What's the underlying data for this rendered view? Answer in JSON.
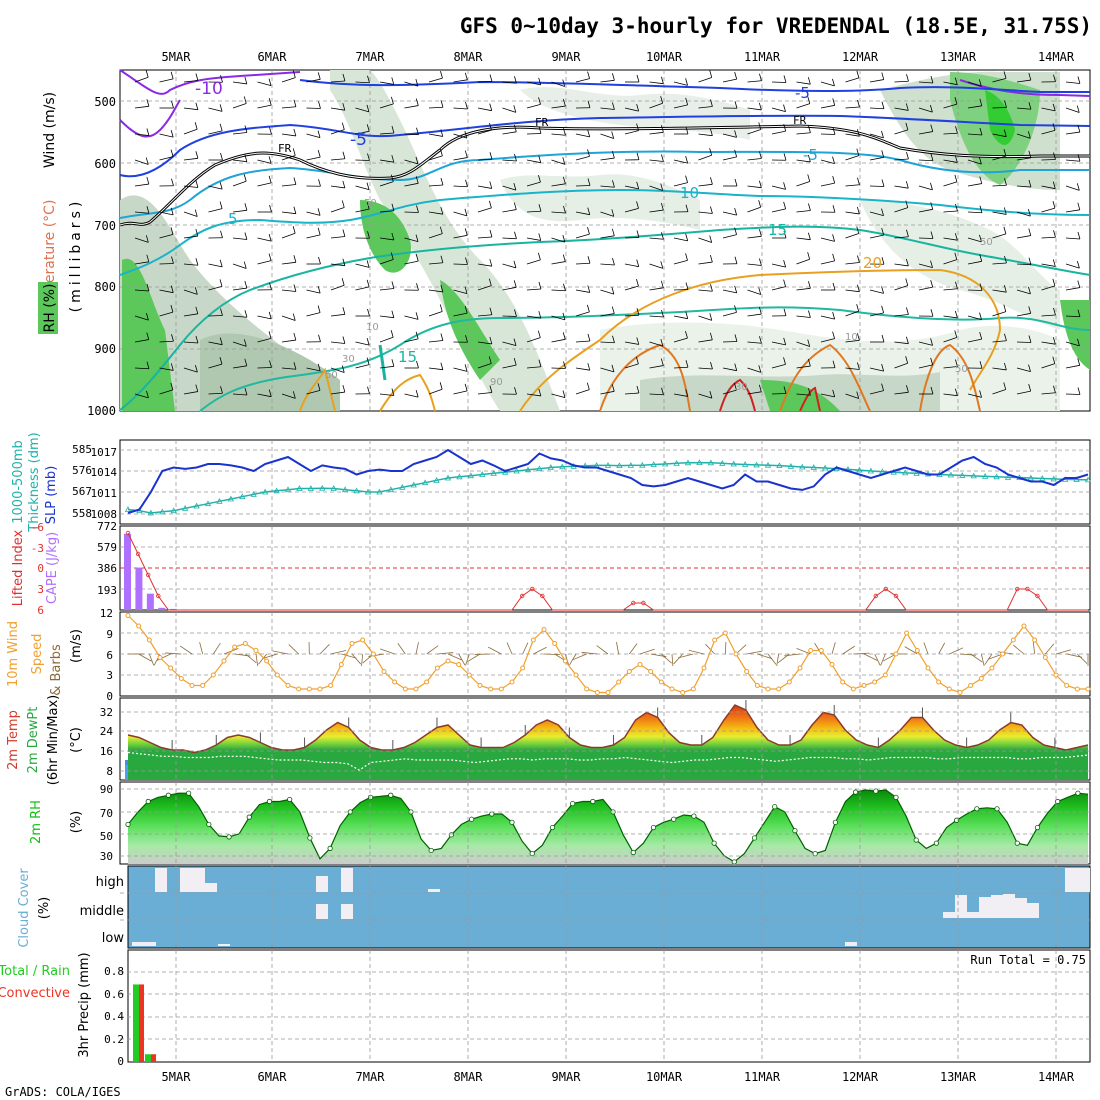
{
  "title": "GFS 0~10day 3-hourly for VREDENDAL (18.5E, 31.75S)",
  "footer": "GrADS: COLA/IGES",
  "dates": [
    "5MAR",
    "6MAR",
    "7MAR",
    "8MAR",
    "9MAR",
    "10MAR",
    "11MAR",
    "12MAR",
    "13MAR",
    "14MAR"
  ],
  "colors": {
    "slp": "#1a33cc",
    "thickness": "#20b2aa",
    "lifted": "#e03030",
    "cape": "#b070ff",
    "wind10": "#f0a030",
    "temp": "#d23c2d",
    "rh": "#10c010",
    "cloud": "#6aaed6",
    "precip_total": "#22cc22",
    "precip_conv": "#ee3322"
  },
  "panels": {
    "upper": {
      "ylabel_wind": "Wind (m/s)",
      "ylabel_temp": "Temperature (°C)",
      "ylabel_rh": "RH (%)",
      "ylabel_units": "(millibars)",
      "yticks": [
        "500",
        "600",
        "700",
        "800",
        "900",
        "1000"
      ],
      "contour_labels": [
        "-10",
        "-5",
        "-5",
        "-5",
        "FR",
        "FR",
        "FR",
        "5",
        "10",
        "15",
        "15",
        "20",
        "5",
        "50",
        "50",
        "10",
        "10",
        "30",
        "30",
        "50",
        "50",
        "90"
      ]
    },
    "slp": {
      "ylabel_a": "1000-500mb",
      "ylabel_b": "Thickness (dm)",
      "ylabel_c": "SLP (mb)",
      "left_ticks": [
        "585",
        "576",
        "567",
        "558"
      ],
      "right_ticks": [
        "1017",
        "1014",
        "1011",
        "1008"
      ]
    },
    "cape": {
      "ylabel_a": "Lifted Index",
      "ylabel_b": "CAPE (J/kg)",
      "left_ticks": [
        "-6",
        "-3",
        "0",
        "3",
        "6"
      ],
      "right_ticks": [
        "772",
        "579",
        "386",
        "193"
      ]
    },
    "wind": {
      "ylabel_a": "10m Wind",
      "ylabel_b": "Speed",
      "ylabel_c": "(m/s)",
      "ylabel_d": "& Barbs",
      "ticks": [
        "12",
        "9",
        "6",
        "3",
        "0"
      ]
    },
    "temp": {
      "ylabel_a": "2m Temp",
      "ylabel_b": "2m DewPt",
      "ylabel_c": "(6hr Min/Max)",
      "ylabel_d": "(°C)",
      "ticks": [
        "32",
        "24",
        "16",
        "8"
      ]
    },
    "rh": {
      "ylabel_a": "2m RH",
      "ylabel_b": "(%)",
      "ticks": [
        "90",
        "70",
        "50",
        "30"
      ]
    },
    "cloud": {
      "ylabel_a": "Cloud Cover",
      "ylabel_b": "(%)",
      "ticks": [
        "high",
        "middle",
        "low"
      ]
    },
    "precip": {
      "ylabel_a": "Total / Rain",
      "ylabel_b": "Convective",
      "ylabel_c": "3hr Precip (mm)",
      "ticks": [
        "0.8",
        "0.6",
        "0.4",
        "0.2",
        "0"
      ],
      "run_total": "Run Total = 0.75"
    }
  },
  "chart_data": [
    {
      "type": "line",
      "name": "SLP / Thickness",
      "x_unit": "3-hourly steps from 4 MAR 12Z",
      "series": [
        {
          "name": "SLP (mb)",
          "values": [
            1008,
            1008.5,
            1011,
            1014,
            1014.5,
            1014.3,
            1014.5,
            1015,
            1015,
            1014.8,
            1014.5,
            1014,
            1015,
            1015.5,
            1016,
            1015,
            1014,
            1014.8,
            1014.5,
            1014.3,
            1013.5,
            1014,
            1014.2,
            1014,
            1014,
            1015,
            1015.5,
            1016,
            1017,
            1016,
            1015,
            1015.5,
            1014.8,
            1014,
            1014.5,
            1015,
            1016.5,
            1015.8,
            1015.5,
            1014.8,
            1014.5,
            1014.5,
            1014,
            1013.5,
            1013,
            1012,
            1011.8,
            1012,
            1012.5,
            1013,
            1012.5,
            1012,
            1011.5,
            1012,
            1013.5,
            1012.5,
            1012.5,
            1012,
            1011.5,
            1011.3,
            1011.8,
            1013.5,
            1014.5,
            1014,
            1013.5,
            1013,
            1013.5,
            1014,
            1014.5,
            1014,
            1013.5,
            1013.5,
            1014.5,
            1015.5,
            1016,
            1015,
            1014.5,
            1013.5,
            1013,
            1012.5,
            1012.5,
            1012,
            1013,
            1013,
            1013.5
          ]
        },
        {
          "name": "1000-500mb Thickness (dm)",
          "values": [
            559.5,
            559,
            558,
            558.5,
            559,
            560,
            561,
            562,
            563,
            564,
            565,
            566,
            567,
            567.5,
            568,
            568.5,
            568.5,
            568.6,
            568.5,
            568,
            567.5,
            567,
            567,
            568,
            569,
            570,
            571,
            572,
            573,
            573.5,
            574,
            574.5,
            575,
            575.5,
            576,
            576.5,
            577,
            577.5,
            577.8,
            578,
            578.2,
            578.4,
            578.4,
            578.3,
            578.4,
            578.5,
            578.8,
            579,
            579.3,
            579.5,
            579.6,
            579.5,
            579.3,
            579,
            578.8,
            578.6,
            578.5,
            578.3,
            578,
            577.7,
            577.5,
            577.3,
            577,
            576.7,
            576.4,
            576,
            575.7,
            575.5,
            575.2,
            575,
            574.7,
            574.5,
            574.3,
            574.1,
            573.9,
            573.7,
            573.5,
            573.3,
            573.2,
            573,
            572.8,
            572.6,
            572.4,
            572.3,
            572.2
          ]
        }
      ]
    },
    {
      "type": "line",
      "name": "Lifted Index / CAPE",
      "series": [
        {
          "name": "Lifted Index",
          "values": [
            -5,
            -2,
            1,
            4,
            6,
            6,
            6,
            6,
            6,
            6,
            6,
            6,
            6,
            6,
            6,
            6,
            6,
            6,
            6,
            6,
            6,
            6,
            6,
            6,
            6,
            6,
            6,
            6,
            6,
            6,
            6,
            6,
            6,
            6,
            6,
            6,
            6,
            6,
            6,
            4,
            3,
            4,
            6,
            6,
            6,
            6,
            6,
            6,
            6,
            6,
            5,
            5,
            6,
            6,
            6,
            6,
            6,
            6,
            6,
            6,
            6,
            6,
            6,
            6,
            6,
            6,
            6,
            6,
            6,
            6,
            6,
            6,
            6,
            6,
            4,
            3,
            4,
            6,
            6,
            6,
            6,
            6,
            6,
            6,
            6,
            6,
            6,
            6,
            3,
            3,
            4,
            6,
            6,
            6,
            6,
            6
          ]
        },
        {
          "name": "CAPE (J/kg)",
          "values": [
            700,
            390,
            150,
            20,
            10,
            5,
            0,
            0,
            0,
            0,
            0,
            0,
            0,
            0,
            0,
            0,
            0,
            0,
            0,
            0,
            0,
            0,
            0,
            0,
            0,
            0,
            0,
            0,
            0,
            0,
            0,
            0,
            0,
            0,
            0,
            0,
            0,
            0,
            0,
            0,
            0,
            0,
            0,
            0,
            0,
            0,
            0,
            0,
            0,
            0,
            0,
            0,
            0,
            0,
            0,
            0,
            0,
            0,
            0,
            0,
            0,
            0,
            0,
            0,
            0,
            0,
            0,
            0,
            0,
            0,
            0,
            0,
            0,
            0,
            0,
            0,
            0,
            0,
            0,
            0,
            0,
            0,
            0,
            0,
            0
          ]
        }
      ]
    },
    {
      "type": "line",
      "name": "10m Wind Speed (m/s)",
      "series": [
        {
          "name": "10m Wind Speed",
          "values": [
            11.5,
            10,
            8,
            5.5,
            4,
            2.5,
            1.5,
            1.5,
            3,
            5,
            7,
            7.5,
            6.5,
            5,
            3,
            1.5,
            1,
            1,
            1,
            1.5,
            4.5,
            7.5,
            8,
            6,
            3.5,
            2,
            1,
            1,
            2,
            4,
            5,
            4.5,
            3,
            1.5,
            1,
            1,
            2,
            4,
            8,
            9.5,
            7.5,
            5,
            3,
            1,
            0.5,
            0.5,
            2,
            3.5,
            4.5,
            3.5,
            2,
            1,
            0.5,
            1,
            4,
            8,
            9,
            6,
            3.5,
            1.5,
            1,
            1,
            2,
            4,
            6.5,
            6.5,
            4.5,
            2,
            1,
            1.5,
            2,
            3,
            6,
            9,
            6.5,
            4,
            2,
            1,
            0.5,
            1.5,
            2.5,
            4,
            6,
            8,
            10,
            8,
            5.5,
            3,
            1.5,
            1,
            1
          ]
        }
      ]
    },
    {
      "type": "area",
      "name": "2m Temp / DewPt (°C)",
      "series": [
        {
          "name": "2m Temp",
          "values": [
            22,
            21,
            19,
            17,
            16,
            16,
            15,
            16,
            18,
            21,
            22,
            21,
            19,
            17,
            16,
            16,
            17,
            20,
            24,
            27,
            25,
            20,
            17,
            16,
            16,
            17,
            19,
            22,
            25,
            26,
            22,
            18,
            17,
            17,
            17,
            19,
            22,
            26,
            28,
            26,
            21,
            18,
            17,
            17,
            18,
            21,
            28,
            31,
            29,
            23,
            19,
            18,
            18,
            21,
            28,
            34,
            32,
            25,
            20,
            18,
            18,
            20,
            26,
            31,
            30,
            24,
            20,
            18,
            17,
            20,
            24,
            29,
            29,
            24,
            20,
            18,
            17,
            18,
            20,
            24,
            27,
            26,
            21,
            18,
            17,
            16,
            17,
            18
          ]
        },
        {
          "name": "2m DewPt",
          "values": [
            15,
            14.5,
            14,
            13.5,
            13.5,
            13,
            13,
            13,
            13.5,
            13.5,
            13.5,
            13,
            12.5,
            12,
            12,
            12,
            11.5,
            11,
            11,
            10.5,
            8,
            11,
            11.5,
            12,
            12.5,
            12,
            12,
            12,
            12,
            11.5,
            11,
            11.5,
            12,
            12.5,
            12.5,
            12,
            12.5,
            12.5,
            12.5,
            12,
            12,
            12.5,
            12.5,
            13,
            12.5,
            12,
            11.5,
            11,
            11.5,
            12,
            12,
            12.5,
            13,
            13,
            12.5,
            12,
            11.5,
            12,
            12.5,
            13,
            13,
            13,
            12.5,
            12.5,
            12,
            12.5,
            13,
            13,
            13,
            13,
            12.5,
            12.5,
            13,
            13,
            13,
            13,
            13,
            12.5,
            12.5,
            13,
            13,
            13,
            13.5,
            14
          ]
        }
      ]
    },
    {
      "type": "area",
      "name": "2m RH (%)",
      "series": [
        {
          "name": "2m RH",
          "values": [
            58,
            70,
            80,
            84,
            86,
            88,
            88,
            75,
            58,
            47,
            46,
            49,
            65,
            77,
            80,
            80,
            82,
            70,
            45,
            25,
            35,
            57,
            70,
            79,
            84,
            85,
            86,
            83,
            70,
            44,
            33,
            35,
            48,
            58,
            63,
            66,
            68,
            68,
            60,
            42,
            30,
            38,
            55,
            66,
            78,
            80,
            80,
            82,
            70,
            48,
            31,
            40,
            55,
            60,
            63,
            67,
            66,
            60,
            40,
            28,
            22,
            30,
            45,
            60,
            75,
            70,
            52,
            35,
            30,
            33,
            60,
            80,
            89,
            91,
            90,
            91,
            84,
            66,
            43,
            35,
            40,
            55,
            62,
            68,
            73,
            74,
            73,
            60,
            40,
            38,
            55,
            69,
            80,
            84,
            88,
            87
          ]
        }
      ]
    },
    {
      "type": "bar",
      "name": "3hr Precip (mm)",
      "series": [
        {
          "name": "Total / Rain",
          "values": [
            0.7,
            0.07
          ]
        },
        {
          "name": "Convective",
          "values": [
            0.7,
            0.07
          ]
        }
      ],
      "ylim": [
        0,
        0.95
      ]
    }
  ]
}
